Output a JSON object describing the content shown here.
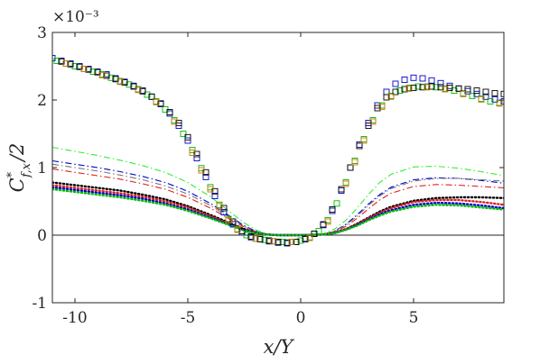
{
  "chart_data": {
    "type": "scatter",
    "title": "",
    "xlabel": "x/Y",
    "ylabel_main": "C",
    "ylabel_sup": "*",
    "ylabel_sub": "f,x",
    "ylabel_tail": "/2",
    "y_multiplier": "×10⁻³",
    "xlim": [
      -11,
      9
    ],
    "ylim": [
      -1,
      3
    ],
    "xticks": [
      -10,
      -5,
      0,
      5
    ],
    "yticks": [
      -1,
      0,
      1,
      2,
      3
    ],
    "grid": false,
    "zero_line": true,
    "marker_series": [
      {
        "color": "#0000cc",
        "marker": "square",
        "x": [
          -11,
          -10.6,
          -10.2,
          -9.8,
          -9.4,
          -9.0,
          -8.6,
          -8.2,
          -7.8,
          -7.4,
          -7.0,
          -6.6,
          -6.2,
          -5.8,
          -5.4,
          -5.0,
          -4.6,
          -4.2,
          -3.8,
          -3.4,
          -3.0,
          -2.6,
          -2.2,
          -1.8,
          -1.4,
          -1.0,
          -0.6,
          -0.2,
          0.2,
          0.6,
          1.0,
          1.4,
          1.8,
          2.2,
          2.6,
          3.0,
          3.4,
          3.8,
          4.2,
          4.6,
          5.0,
          5.4,
          5.8,
          6.2,
          6.6,
          7.0,
          7.4,
          7.8,
          8.2,
          8.6,
          9.0
        ],
        "y": [
          2.62,
          2.58,
          2.54,
          2.5,
          2.46,
          2.42,
          2.38,
          2.32,
          2.27,
          2.21,
          2.14,
          2.05,
          1.94,
          1.8,
          1.62,
          1.4,
          1.14,
          0.86,
          0.58,
          0.34,
          0.16,
          0.04,
          -0.03,
          -0.06,
          -0.09,
          -0.11,
          -0.12,
          -0.1,
          -0.05,
          0.02,
          0.15,
          0.36,
          0.66,
          1.0,
          1.34,
          1.66,
          1.92,
          2.12,
          2.24,
          2.3,
          2.33,
          2.32,
          2.29,
          2.25,
          2.21,
          2.17,
          2.13,
          2.09,
          2.05,
          2.01,
          1.98
        ]
      },
      {
        "color": "#00bb00",
        "marker": "square",
        "x": [
          -10.8,
          -10.4,
          -10.0,
          -9.6,
          -9.2,
          -8.8,
          -8.4,
          -8.0,
          -7.6,
          -7.2,
          -6.8,
          -6.4,
          -6.0,
          -5.6,
          -5.2,
          -4.8,
          -4.4,
          -4.0,
          -3.6,
          -3.2,
          -2.8,
          -2.4,
          -2.0,
          -1.6,
          -1.2,
          -0.8,
          -0.4,
          0.0,
          0.4,
          0.8,
          1.2,
          1.6,
          2.0,
          2.4,
          2.8,
          3.2,
          3.6,
          4.0,
          4.4,
          4.8,
          5.2,
          5.6,
          6.0,
          6.4,
          6.8,
          7.2,
          7.6,
          8.0,
          8.4,
          8.8
        ],
        "y": [
          2.58,
          2.54,
          2.5,
          2.46,
          2.42,
          2.38,
          2.33,
          2.28,
          2.23,
          2.16,
          2.08,
          1.98,
          1.86,
          1.7,
          1.5,
          1.26,
          0.99,
          0.71,
          0.45,
          0.24,
          0.09,
          0.0,
          -0.05,
          -0.07,
          -0.09,
          -0.1,
          -0.1,
          -0.08,
          -0.03,
          0.06,
          0.22,
          0.47,
          0.78,
          1.1,
          1.42,
          1.7,
          1.92,
          2.06,
          2.14,
          2.18,
          2.2,
          2.2,
          2.19,
          2.17,
          2.14,
          2.1,
          2.06,
          2.02,
          1.98,
          1.96
        ]
      },
      {
        "color": "#000000",
        "marker": "square",
        "x": [
          -10.6,
          -10.2,
          -9.8,
          -9.4,
          -9.0,
          -8.6,
          -8.2,
          -7.8,
          -7.4,
          -7.0,
          -6.6,
          -6.2,
          -5.8,
          -5.4,
          -5.0,
          -4.6,
          -4.2,
          -3.8,
          -3.4,
          -3.0,
          -2.6,
          -2.2,
          -1.8,
          -1.4,
          -1.0,
          -0.6,
          -0.2,
          0.2,
          0.6,
          1.0,
          1.4,
          1.8,
          2.2,
          2.6,
          3.0,
          3.4,
          3.8,
          4.2,
          4.6,
          5.0,
          5.4,
          5.8,
          6.2,
          6.6,
          7.0,
          7.4,
          7.8,
          8.2,
          8.6,
          9.0
        ],
        "y": [
          2.57,
          2.53,
          2.49,
          2.45,
          2.41,
          2.36,
          2.31,
          2.26,
          2.2,
          2.13,
          2.05,
          1.95,
          1.82,
          1.66,
          1.45,
          1.2,
          0.93,
          0.65,
          0.4,
          0.2,
          0.06,
          -0.02,
          -0.06,
          -0.08,
          -0.1,
          -0.11,
          -0.1,
          -0.06,
          0.02,
          0.16,
          0.38,
          0.68,
          1.0,
          1.32,
          1.62,
          1.88,
          2.04,
          2.12,
          2.16,
          2.18,
          2.19,
          2.2,
          2.19,
          2.18,
          2.17,
          2.16,
          2.14,
          2.12,
          2.1,
          2.09
        ]
      },
      {
        "color": "#cc7700",
        "marker": "square",
        "x": [
          -10.4,
          -9.6,
          -8.8,
          -8.0,
          -7.2,
          -6.4,
          -5.6,
          -4.8,
          -4.4,
          -4.0,
          -3.6,
          -3.2,
          -2.8,
          -2.0,
          -1.2,
          -0.4,
          0.4,
          1.2,
          2.0,
          2.4,
          2.8,
          3.2,
          3.6,
          4.0,
          4.8,
          5.6,
          6.4,
          7.2,
          8.0,
          8.8
        ],
        "y": [
          2.54,
          2.46,
          2.37,
          2.27,
          2.15,
          1.97,
          1.68,
          1.22,
          0.96,
          0.68,
          0.43,
          0.22,
          0.08,
          -0.05,
          -0.09,
          -0.1,
          -0.04,
          0.2,
          0.76,
          1.08,
          1.4,
          1.68,
          1.9,
          2.05,
          2.17,
          2.19,
          2.16,
          2.09,
          2.01,
          1.95
        ]
      }
    ],
    "line_series": [
      {
        "color": "#33ee33",
        "style": "dashdot",
        "width": 1.1,
        "x": [
          -11,
          -10,
          -9,
          -8,
          -7,
          -6,
          -5,
          -4,
          -3,
          -2.5,
          -2,
          -1.5,
          -1,
          0,
          1,
          1.5,
          2,
          2.5,
          3,
          3.5,
          4,
          5,
          6,
          7,
          8,
          9
        ],
        "y": [
          1.3,
          1.24,
          1.18,
          1.11,
          1.03,
          0.93,
          0.78,
          0.57,
          0.31,
          0.18,
          0.08,
          0.02,
          0.0,
          0.0,
          0.02,
          0.09,
          0.22,
          0.4,
          0.6,
          0.78,
          0.9,
          1.01,
          1.02,
          0.99,
          0.94,
          0.88
        ]
      },
      {
        "color": "#0000cc",
        "style": "dashdot",
        "width": 1.1,
        "x": [
          -11,
          -10,
          -9,
          -8,
          -7,
          -6,
          -5,
          -4,
          -3,
          -2.5,
          -2,
          -1.5,
          -1,
          0,
          1,
          1.5,
          2,
          2.5,
          3,
          3.5,
          4,
          5,
          6,
          7,
          8,
          9
        ],
        "y": [
          1.1,
          1.05,
          1.0,
          0.94,
          0.87,
          0.78,
          0.65,
          0.47,
          0.25,
          0.14,
          0.06,
          0.01,
          0.0,
          0.0,
          0.01,
          0.06,
          0.16,
          0.3,
          0.46,
          0.6,
          0.71,
          0.82,
          0.85,
          0.84,
          0.81,
          0.77
        ]
      },
      {
        "color": "#777777",
        "style": "dashdot",
        "width": 1.1,
        "x": [
          -11,
          -10,
          -9,
          -8,
          -7,
          -6,
          -5,
          -4,
          -3,
          -2.5,
          -2,
          -1.5,
          -1,
          0,
          1,
          1.5,
          2,
          2.5,
          3,
          3.5,
          4,
          5,
          6,
          7,
          8,
          9
        ],
        "y": [
          1.05,
          1.0,
          0.95,
          0.89,
          0.82,
          0.73,
          0.61,
          0.44,
          0.23,
          0.13,
          0.05,
          0.01,
          0.0,
          0.0,
          0.01,
          0.06,
          0.15,
          0.28,
          0.44,
          0.58,
          0.69,
          0.8,
          0.84,
          0.84,
          0.82,
          0.8
        ]
      },
      {
        "color": "#dd2222",
        "style": "dashdot",
        "width": 1.1,
        "x": [
          -11,
          -10,
          -9,
          -8,
          -7,
          -6,
          -5,
          -4,
          -3,
          -2.5,
          -2,
          -1.5,
          -1,
          0,
          1,
          1.5,
          2,
          2.5,
          3,
          3.5,
          4,
          5,
          6,
          7,
          8,
          9
        ],
        "y": [
          0.98,
          0.93,
          0.88,
          0.83,
          0.76,
          0.68,
          0.56,
          0.4,
          0.21,
          0.12,
          0.05,
          0.01,
          0.0,
          0.0,
          0.01,
          0.05,
          0.13,
          0.25,
          0.39,
          0.52,
          0.62,
          0.72,
          0.75,
          0.74,
          0.72,
          0.7
        ]
      },
      {
        "color": "#000000",
        "style": "dotted",
        "width": 2.4,
        "x": [
          -11,
          -10,
          -9,
          -8,
          -7,
          -6,
          -5,
          -4,
          -3,
          -2.5,
          -2,
          -1.5,
          -1,
          0,
          1,
          1.5,
          2,
          2.5,
          3,
          3.5,
          4,
          5,
          6,
          7,
          8,
          9
        ],
        "y": [
          0.78,
          0.74,
          0.7,
          0.66,
          0.6,
          0.53,
          0.43,
          0.3,
          0.16,
          0.09,
          0.04,
          0.01,
          0.0,
          0.0,
          0.01,
          0.04,
          0.09,
          0.17,
          0.26,
          0.35,
          0.42,
          0.51,
          0.55,
          0.56,
          0.56,
          0.55
        ]
      },
      {
        "color": "#dd2222",
        "style": "dotted",
        "width": 2.4,
        "x": [
          -11,
          -10,
          -9,
          -8,
          -7,
          -6,
          -5,
          -4,
          -3,
          -2.5,
          -2,
          -1.5,
          -1,
          0,
          1,
          1.5,
          2,
          2.5,
          3,
          3.5,
          4,
          5,
          6,
          7,
          8,
          9
        ],
        "y": [
          0.74,
          0.7,
          0.66,
          0.62,
          0.57,
          0.5,
          0.41,
          0.28,
          0.15,
          0.08,
          0.03,
          0.01,
          0.0,
          0.0,
          0.01,
          0.04,
          0.09,
          0.16,
          0.25,
          0.33,
          0.4,
          0.49,
          0.52,
          0.52,
          0.49,
          0.45
        ]
      },
      {
        "color": "#0000cc",
        "style": "dotted",
        "width": 2.4,
        "x": [
          -11,
          -10,
          -9,
          -8,
          -7,
          -6,
          -5,
          -4,
          -3,
          -2.5,
          -2,
          -1.5,
          -1,
          0,
          1,
          1.5,
          2,
          2.5,
          3,
          3.5,
          4,
          5,
          6,
          7,
          8,
          9
        ],
        "y": [
          0.71,
          0.67,
          0.63,
          0.59,
          0.54,
          0.47,
          0.38,
          0.26,
          0.14,
          0.08,
          0.03,
          0.01,
          0.0,
          0.0,
          0.01,
          0.03,
          0.08,
          0.15,
          0.23,
          0.31,
          0.37,
          0.45,
          0.48,
          0.47,
          0.44,
          0.4
        ]
      },
      {
        "color": "#00bb00",
        "style": "dotted",
        "width": 2.4,
        "x": [
          -11,
          -10,
          -9,
          -8,
          -7,
          -6,
          -5,
          -4,
          -3,
          -2.5,
          -2,
          -1.5,
          -1,
          0,
          1,
          1.5,
          2,
          2.5,
          3,
          3.5,
          4,
          5,
          6,
          7,
          8,
          9
        ],
        "y": [
          0.68,
          0.64,
          0.6,
          0.56,
          0.51,
          0.45,
          0.36,
          0.25,
          0.13,
          0.07,
          0.03,
          0.01,
          0.0,
          0.0,
          0.01,
          0.03,
          0.08,
          0.14,
          0.22,
          0.29,
          0.35,
          0.42,
          0.45,
          0.44,
          0.41,
          0.38
        ]
      }
    ]
  }
}
